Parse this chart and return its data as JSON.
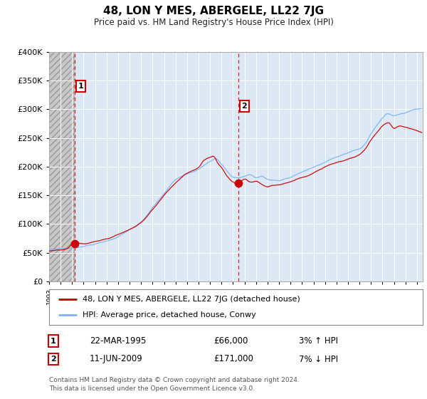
{
  "title": "48, LON Y MES, ABERGELE, LL22 7JG",
  "subtitle": "Price paid vs. HM Land Registry's House Price Index (HPI)",
  "ylim": [
    0,
    400000
  ],
  "yticks": [
    0,
    50000,
    100000,
    150000,
    200000,
    250000,
    300000,
    350000,
    400000
  ],
  "hpi_color": "#7fb3f5",
  "sale_color": "#cc0000",
  "marker1_year": 1995.22,
  "marker1_price": 66000,
  "marker2_year": 2009.45,
  "marker2_price": 171000,
  "legend_sale_label": "48, LON Y MES, ABERGELE, LL22 7JG (detached house)",
  "legend_hpi_label": "HPI: Average price, detached house, Conwy",
  "note1_date": "22-MAR-1995",
  "note1_price": "£66,000",
  "note1_hpi": "3% ↑ HPI",
  "note2_date": "11-JUN-2009",
  "note2_price": "£171,000",
  "note2_hpi": "7% ↓ HPI",
  "copyright_text": "Contains HM Land Registry data © Crown copyright and database right 2024.\nThis data is licensed under the Open Government Licence v3.0.",
  "plot_bg_color": "#dde8f5",
  "hatch_bg_color": "#c8c8c8",
  "xlim_start": 1993,
  "xlim_end": 2025.5
}
